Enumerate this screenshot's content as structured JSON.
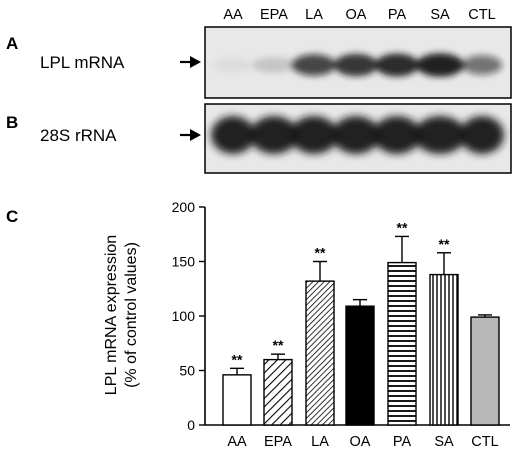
{
  "panels": {
    "a": {
      "letter": "A",
      "row_label": "LPL mRNA"
    },
    "b": {
      "letter": "B",
      "row_label": "28S rRNA"
    },
    "c": {
      "letter": "C"
    }
  },
  "lanes": [
    "AA",
    "EPA",
    "LA",
    "OA",
    "PA",
    "SA",
    "CTL"
  ],
  "blot_a_intensity": [
    0.05,
    0.15,
    0.75,
    0.85,
    0.9,
    0.95,
    0.55
  ],
  "blot_b_intensity": [
    0.95,
    0.95,
    0.95,
    0.95,
    0.95,
    0.95,
    0.95
  ],
  "colors": {
    "band": "#141414",
    "blot_bg": "#e8e8e8",
    "ctl_bar": "#b8b8b8",
    "oa_bar": "#000000"
  },
  "chart_data": {
    "type": "bar",
    "categories": [
      "AA",
      "EPA",
      "LA",
      "OA",
      "PA",
      "SA",
      "CTL"
    ],
    "values": [
      46,
      60,
      132,
      109,
      149,
      138,
      99
    ],
    "errors": [
      6,
      5,
      18,
      6,
      24,
      20,
      2
    ],
    "significance": [
      "**",
      "**",
      "**",
      "",
      "**",
      "**",
      ""
    ],
    "fills": [
      "white",
      "diagonal-sparse",
      "diagonal-dense",
      "solid-black",
      "horizontal",
      "vertical",
      "solid-gray"
    ],
    "ylabel_line1": "LPL mRNA expression",
    "ylabel_line2": "(% of control values)",
    "ylim": [
      0,
      200
    ],
    "yticks": [
      0,
      50,
      100,
      150,
      200
    ]
  }
}
